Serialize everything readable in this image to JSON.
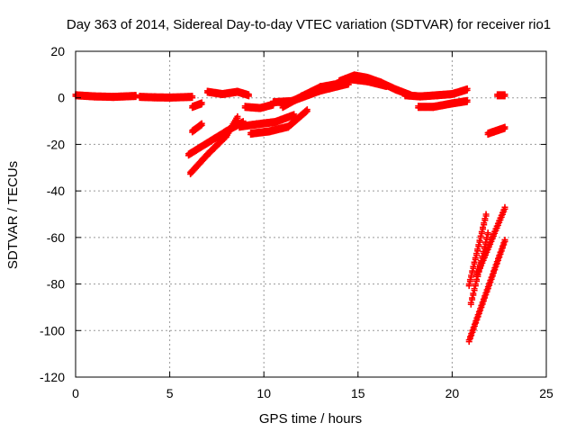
{
  "chart_data": {
    "type": "scatter",
    "title": "Day 363 of 2014, Sidereal Day-to-day VTEC variation (SDTVAR) for receiver rio1",
    "xlabel": "GPS time / hours",
    "ylabel": "SDTVAR / TECUs",
    "xlim": [
      0,
      25
    ],
    "ylim": [
      -120,
      20
    ],
    "xticks": [
      0,
      5,
      10,
      15,
      20,
      25
    ],
    "yticks": [
      -120,
      -100,
      -80,
      -60,
      -40,
      -20,
      0,
      20
    ],
    "grid": true,
    "color": "#ff0000",
    "marker": "plus",
    "segments": [
      {
        "x": [
          0.0,
          1.0,
          2.0,
          3.2
        ],
        "y": [
          1.5,
          1.0,
          0.8,
          1.2
        ]
      },
      {
        "x": [
          3.4,
          4.2,
          5.0,
          6.2
        ],
        "y": [
          0.8,
          0.6,
          0.5,
          0.8
        ]
      },
      {
        "x": [
          6.2,
          6.7
        ],
        "y": [
          -3.5,
          -2.0
        ]
      },
      {
        "x": [
          6.2,
          6.7
        ],
        "y": [
          -14.0,
          -11.0
        ]
      },
      {
        "x": [
          6.0,
          7.0,
          8.0,
          8.9
        ],
        "y": [
          -24.0,
          -19.0,
          -14.0,
          -10.0
        ]
      },
      {
        "x": [
          6.1,
          7.0,
          8.0,
          8.6
        ],
        "y": [
          -32.0,
          -24.0,
          -16.0,
          -8.0
        ]
      },
      {
        "x": [
          7.0,
          7.8,
          8.6,
          9.2
        ],
        "y": [
          3.0,
          2.0,
          3.0,
          1.5
        ]
      },
      {
        "x": [
          9.0,
          9.8,
          10.5
        ],
        "y": [
          -3.5,
          -4.0,
          -2.5
        ]
      },
      {
        "x": [
          10.5,
          11.5,
          12.5,
          13.5
        ],
        "y": [
          -1.5,
          -1.0,
          2.0,
          5.0
        ]
      },
      {
        "x": [
          8.7,
          9.6,
          10.6,
          11.6
        ],
        "y": [
          -12.0,
          -11.0,
          -10.0,
          -7.0
        ]
      },
      {
        "x": [
          9.3,
          10.3,
          11.3,
          12.3
        ],
        "y": [
          -15.0,
          -14.0,
          -12.0,
          -5.0
        ]
      },
      {
        "x": [
          11.0,
          12.0,
          13.0,
          14.0
        ],
        "y": [
          -3.5,
          1.0,
          5.0,
          6.5
        ]
      },
      {
        "x": [
          11.5,
          12.5,
          13.5,
          14.5
        ],
        "y": [
          -1.0,
          2.5,
          4.5,
          6.5
        ]
      },
      {
        "x": [
          14.0,
          14.8,
          15.5,
          16.2,
          17.0,
          17.8
        ],
        "y": [
          7.5,
          10.0,
          9.0,
          7.0,
          4.0,
          1.5
        ]
      },
      {
        "x": [
          14.5,
          15.5,
          16.5
        ],
        "y": [
          8.5,
          7.5,
          5.5
        ]
      },
      {
        "x": [
          17.5,
          18.3,
          19.2,
          20.0,
          20.8
        ],
        "y": [
          1.5,
          1.0,
          1.5,
          2.0,
          4.0
        ]
      },
      {
        "x": [
          18.2,
          19.0,
          20.0,
          20.8
        ],
        "y": [
          -3.5,
          -3.5,
          -2.0,
          -1.0
        ]
      },
      {
        "x": [
          22.4,
          22.8
        ],
        "y": [
          1.5,
          1.5
        ]
      },
      {
        "x": [
          21.9,
          22.8
        ],
        "y": [
          -15.0,
          -12.5
        ]
      },
      {
        "x": [
          20.9,
          21.8
        ],
        "y": [
          -80.0,
          -50.0
        ]
      },
      {
        "x": [
          21.0,
          21.9
        ],
        "y": [
          -88.0,
          -58.0
        ]
      },
      {
        "x": [
          21.3,
          22.8
        ],
        "y": [
          -76.0,
          -47.0
        ]
      },
      {
        "x": [
          20.9,
          22.8
        ],
        "y": [
          -104.0,
          -61.0
        ]
      }
    ]
  }
}
